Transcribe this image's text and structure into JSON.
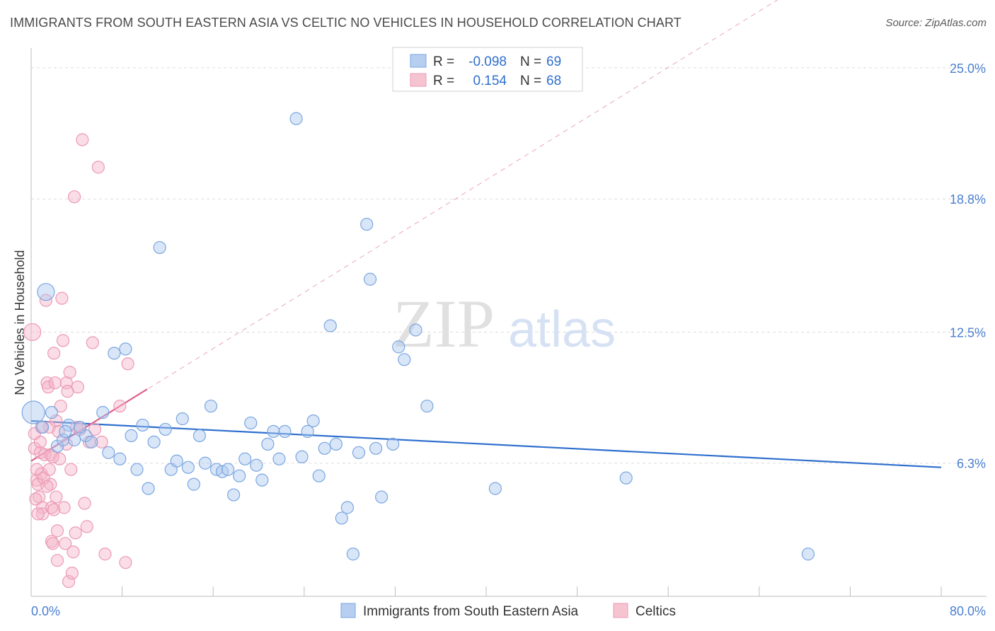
{
  "header": {
    "title": "IMMIGRANTS FROM SOUTH EASTERN ASIA VS CELTIC NO VEHICLES IN HOUSEHOLD CORRELATION CHART",
    "source": "Source: ZipAtlas.com"
  },
  "watermark": {
    "zip": "ZIP",
    "atlas": "atlas"
  },
  "legend": {
    "rows": [
      {
        "r_label": "R =",
        "r_value": "-0.098",
        "n_label": "N =",
        "n_value": "69",
        "color": "#a9c7ef"
      },
      {
        "r_label": "R =",
        "r_value": "0.154",
        "n_label": "N =",
        "n_value": "68",
        "color": "#f4b8c9"
      }
    ]
  },
  "colors": {
    "blue_fill": "rgba(170,200,240,0.45)",
    "blue_stroke": "#7aa6e0",
    "blue_line": "#2f6fce",
    "pink_fill": "rgba(244,180,200,0.45)",
    "pink_stroke": "#ec9ab5",
    "pink_line": "#e0608a",
    "tick_color": "#4a7fd0"
  },
  "chart_data": {
    "type": "scatter",
    "title": "IMMIGRANTS FROM SOUTH EASTERN ASIA VS CELTIC NO VEHICLES IN HOUSEHOLD CORRELATION CHART",
    "xlabel": "",
    "ylabel": "No Vehicles in Household",
    "xlim": [
      0,
      80
    ],
    "ylim": [
      0,
      25.7
    ],
    "x_tick_labels": [
      "0.0%",
      "80.0%"
    ],
    "y_ticks": [
      6.3,
      12.5,
      18.8,
      25.0
    ],
    "y_tick_labels": [
      "6.3%",
      "12.5%",
      "18.8%",
      "25.0%"
    ],
    "grid": true,
    "legend_position": "top-center",
    "series": [
      {
        "name": "Immigrants from South Eastern Asia",
        "color": "#a9c7ef",
        "trend": {
          "x": [
            0,
            80
          ],
          "y": [
            8.3,
            6.1
          ]
        },
        "points": [
          [
            0.2,
            8.7,
            3
          ],
          [
            1.3,
            14.4,
            2
          ],
          [
            1.8,
            8.7,
            1
          ],
          [
            2.3,
            7.1,
            1
          ],
          [
            2.8,
            7.4,
            1
          ],
          [
            3.3,
            8.1,
            1
          ],
          [
            3.8,
            7.4,
            1
          ],
          [
            4.8,
            7.6,
            1
          ],
          [
            5.3,
            7.3,
            1
          ],
          [
            6.3,
            8.7,
            1
          ],
          [
            6.8,
            6.8,
            1
          ],
          [
            7.3,
            11.5,
            1
          ],
          [
            7.8,
            6.5,
            1
          ],
          [
            8.3,
            11.7,
            1
          ],
          [
            8.8,
            7.6,
            1
          ],
          [
            9.3,
            6.0,
            1
          ],
          [
            9.8,
            8.1,
            1
          ],
          [
            10.3,
            5.1,
            1
          ],
          [
            10.8,
            7.3,
            1
          ],
          [
            11.3,
            16.5,
            1
          ],
          [
            11.8,
            7.9,
            1
          ],
          [
            12.3,
            6.0,
            1
          ],
          [
            12.8,
            6.4,
            1
          ],
          [
            13.3,
            8.4,
            1
          ],
          [
            13.8,
            6.1,
            1
          ],
          [
            14.3,
            5.3,
            1
          ],
          [
            14.8,
            7.6,
            1
          ],
          [
            15.3,
            6.3,
            1
          ],
          [
            15.8,
            9.0,
            1
          ],
          [
            16.3,
            6.0,
            1
          ],
          [
            16.8,
            5.9,
            1
          ],
          [
            17.3,
            6.0,
            1
          ],
          [
            17.8,
            4.8,
            1
          ],
          [
            18.3,
            5.7,
            1
          ],
          [
            18.8,
            6.5,
            1
          ],
          [
            19.3,
            8.2,
            1
          ],
          [
            19.8,
            6.2,
            1
          ],
          [
            20.3,
            5.5,
            1
          ],
          [
            20.8,
            7.2,
            1
          ],
          [
            21.3,
            7.8,
            1
          ],
          [
            21.8,
            6.5,
            1
          ],
          [
            22.3,
            7.8,
            1
          ],
          [
            23.3,
            22.6,
            1
          ],
          [
            23.8,
            6.6,
            1
          ],
          [
            24.3,
            7.8,
            1
          ],
          [
            24.8,
            8.3,
            1
          ],
          [
            25.3,
            5.7,
            1
          ],
          [
            25.8,
            7.0,
            1
          ],
          [
            26.3,
            12.8,
            1
          ],
          [
            26.8,
            7.2,
            1
          ],
          [
            27.3,
            3.7,
            1
          ],
          [
            27.8,
            4.2,
            1
          ],
          [
            28.3,
            2.0,
            1
          ],
          [
            28.8,
            6.8,
            1
          ],
          [
            29.5,
            17.6,
            1
          ],
          [
            29.8,
            15.0,
            1
          ],
          [
            30.3,
            7.0,
            1
          ],
          [
            30.8,
            4.7,
            1
          ],
          [
            31.8,
            7.2,
            1
          ],
          [
            32.3,
            11.8,
            1
          ],
          [
            32.8,
            11.2,
            1
          ],
          [
            33.8,
            12.6,
            1
          ],
          [
            34.8,
            9.0,
            1
          ],
          [
            40.8,
            5.1,
            1
          ],
          [
            52.3,
            5.6,
            1
          ],
          [
            68.3,
            2.0,
            1
          ],
          [
            1.0,
            8.0,
            1
          ],
          [
            4.3,
            8.0,
            1
          ],
          [
            3.0,
            7.8,
            1
          ]
        ]
      },
      {
        "name": "Celtics",
        "color": "#f4b8c9",
        "trend": {
          "x": [
            0,
            10.2
          ],
          "y": [
            6.4,
            9.8
          ]
        },
        "projection": {
          "x": [
            0,
            80
          ],
          "y": [
            6.4,
            33.0
          ]
        },
        "points": [
          [
            0.1,
            12.5,
            2
          ],
          [
            0.3,
            7.0,
            1
          ],
          [
            0.5,
            6.0,
            1
          ],
          [
            0.5,
            5.5,
            1
          ],
          [
            0.6,
            5.3,
            1
          ],
          [
            0.7,
            4.7,
            1
          ],
          [
            0.8,
            6.8,
            1
          ],
          [
            0.8,
            7.3,
            1
          ],
          [
            0.9,
            5.8,
            1
          ],
          [
            1.0,
            4.2,
            1
          ],
          [
            1.0,
            3.9,
            1
          ],
          [
            1.2,
            6.7,
            1
          ],
          [
            1.3,
            14.0,
            1
          ],
          [
            1.4,
            10.1,
            1
          ],
          [
            1.5,
            9.9,
            1
          ],
          [
            1.6,
            8.0,
            1
          ],
          [
            1.7,
            6.7,
            1
          ],
          [
            1.7,
            5.3,
            1
          ],
          [
            1.8,
            4.2,
            1
          ],
          [
            1.8,
            2.6,
            1
          ],
          [
            1.9,
            2.5,
            1
          ],
          [
            2.0,
            11.5,
            1
          ],
          [
            2.1,
            10.1,
            1
          ],
          [
            2.2,
            8.3,
            1
          ],
          [
            2.2,
            4.7,
            1
          ],
          [
            2.3,
            3.1,
            1
          ],
          [
            2.3,
            1.7,
            1
          ],
          [
            2.4,
            7.8,
            1
          ],
          [
            2.5,
            6.5,
            1
          ],
          [
            2.6,
            9.0,
            1
          ],
          [
            2.7,
            14.1,
            1
          ],
          [
            2.8,
            12.1,
            1
          ],
          [
            2.9,
            4.2,
            1
          ],
          [
            3.0,
            2.5,
            1
          ],
          [
            3.1,
            7.2,
            1
          ],
          [
            3.1,
            10.1,
            1
          ],
          [
            3.2,
            9.7,
            1
          ],
          [
            3.3,
            0.7,
            1
          ],
          [
            3.4,
            10.6,
            1
          ],
          [
            3.5,
            6.0,
            1
          ],
          [
            3.6,
            1.1,
            1
          ],
          [
            3.7,
            2.1,
            1
          ],
          [
            3.8,
            18.9,
            1
          ],
          [
            3.9,
            3.0,
            1
          ],
          [
            4.0,
            8.0,
            1
          ],
          [
            4.1,
            9.9,
            1
          ],
          [
            4.3,
            7.9,
            1
          ],
          [
            4.5,
            21.6,
            1
          ],
          [
            4.7,
            4.4,
            1
          ],
          [
            4.9,
            3.3,
            1
          ],
          [
            5.1,
            7.3,
            1
          ],
          [
            5.4,
            12.0,
            1
          ],
          [
            5.6,
            7.9,
            1
          ],
          [
            5.9,
            20.3,
            1
          ],
          [
            6.2,
            7.3,
            1
          ],
          [
            6.5,
            2.0,
            1
          ],
          [
            8.3,
            1.6,
            1
          ],
          [
            8.5,
            11.0,
            1
          ],
          [
            0.4,
            4.6,
            1
          ],
          [
            0.6,
            3.9,
            1
          ],
          [
            1.1,
            5.6,
            1
          ],
          [
            1.4,
            5.2,
            1
          ],
          [
            1.6,
            6.0,
            1
          ],
          [
            2.0,
            4.1,
            1
          ],
          [
            0.9,
            8.0,
            1
          ],
          [
            7.8,
            9.0,
            1
          ],
          [
            1.9,
            6.6,
            1
          ],
          [
            0.3,
            7.7,
            1
          ]
        ]
      }
    ]
  },
  "bottom_legend": [
    {
      "label": "Immigrants from South Eastern Asia"
    },
    {
      "label": "Celtics"
    }
  ]
}
